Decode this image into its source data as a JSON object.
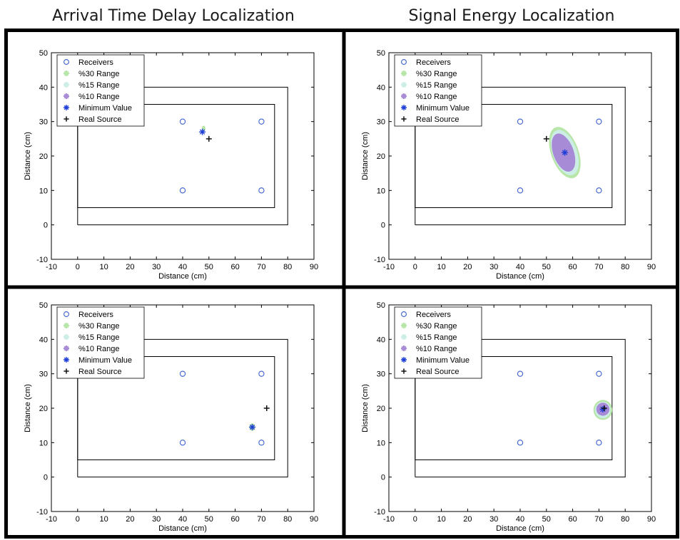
{
  "page": {
    "column_titles": [
      "Arrival Time Delay Localization",
      "Signal Energy Localization"
    ]
  },
  "colors": {
    "receiver": "#3a5fcd",
    "range30": "#b8e6a8",
    "range15": "#cdeee6",
    "range10": "#a78bd6",
    "minimum": "#1f3fd6",
    "real_source": "#111111",
    "frame": "#000000"
  },
  "chart_data": [
    {
      "type": "scatter",
      "column": "Arrival Time Delay Localization",
      "xlabel": "Distance (cm)",
      "ylabel": "Distance (cm)",
      "xlim": [
        -10,
        90
      ],
      "ylim": [
        -10,
        50
      ],
      "xticks": [
        -10,
        0,
        10,
        20,
        30,
        40,
        50,
        60,
        70,
        80,
        90
      ],
      "yticks": [
        -10,
        0,
        10,
        20,
        30,
        40,
        50
      ],
      "grid": false,
      "legend": {
        "placement": "top-left",
        "entries": [
          "Receivers",
          "%30 Range",
          "%15 Range",
          "%10 Range",
          "Minimum Value",
          "Real Source"
        ]
      },
      "outer_rect": [
        [
          0,
          0
        ],
        [
          80,
          0
        ],
        [
          80,
          40
        ],
        [
          0,
          40
        ],
        [
          0,
          0
        ]
      ],
      "inner_rect": [
        [
          0,
          5
        ],
        [
          75,
          5
        ],
        [
          75,
          35
        ],
        [
          0,
          35
        ],
        [
          0,
          5
        ]
      ],
      "receivers": [
        [
          40,
          30
        ],
        [
          70,
          30
        ],
        [
          40,
          10
        ],
        [
          70,
          10
        ]
      ],
      "ranges": {
        "r30": {
          "cx": 48,
          "cy": 28,
          "rx": 0.7,
          "ry": 0.8,
          "angle": 0
        },
        "r15": null,
        "r10": null
      },
      "minimum_value": [
        47.5,
        27
      ],
      "real_source": [
        50,
        25
      ]
    },
    {
      "type": "scatter",
      "column": "Signal Energy Localization",
      "xlabel": "Distance (cm)",
      "ylabel": "Distance (cm)",
      "xlim": [
        -10,
        90
      ],
      "ylim": [
        -10,
        50
      ],
      "xticks": [
        -10,
        0,
        10,
        20,
        30,
        40,
        50,
        60,
        70,
        80,
        90
      ],
      "yticks": [
        -10,
        0,
        10,
        20,
        30,
        40,
        50
      ],
      "grid": false,
      "legend": {
        "placement": "top-left",
        "entries": [
          "Receivers",
          "%30 Range",
          "%15 Range",
          "%10 Range",
          "Minimum Value",
          "Real Source"
        ]
      },
      "outer_rect": [
        [
          0,
          0
        ],
        [
          80,
          0
        ],
        [
          80,
          40
        ],
        [
          0,
          40
        ],
        [
          0,
          0
        ]
      ],
      "inner_rect": [
        [
          0,
          5
        ],
        [
          75,
          5
        ],
        [
          75,
          35
        ],
        [
          0,
          35
        ],
        [
          0,
          5
        ]
      ],
      "receivers": [
        [
          40,
          30
        ],
        [
          70,
          30
        ],
        [
          40,
          10
        ],
        [
          70,
          10
        ]
      ],
      "ranges": {
        "r30": {
          "cx": 57,
          "cy": 21,
          "rx": 5.2,
          "ry": 7.8,
          "angle": -20
        },
        "r15": {
          "cx": 57,
          "cy": 21,
          "rx": 4.6,
          "ry": 6.9,
          "angle": -20
        },
        "r10": {
          "cx": 56.5,
          "cy": 21,
          "rx": 3.9,
          "ry": 5.8,
          "angle": -20
        }
      },
      "minimum_value": [
        57,
        21
      ],
      "real_source": [
        50,
        25
      ]
    },
    {
      "type": "scatter",
      "column": "Arrival Time Delay Localization",
      "xlabel": "Distance (cm)",
      "ylabel": "Distance (cm)",
      "xlim": [
        -10,
        90
      ],
      "ylim": [
        -10,
        50
      ],
      "xticks": [
        -10,
        0,
        10,
        20,
        30,
        40,
        50,
        60,
        70,
        80,
        90
      ],
      "yticks": [
        -10,
        0,
        10,
        20,
        30,
        40,
        50
      ],
      "grid": false,
      "legend": {
        "placement": "top-left",
        "entries": [
          "Receivers",
          "%30 Range",
          "%15 Range",
          "%10 Range",
          "Minimum Value",
          "Real Source"
        ]
      },
      "outer_rect": [
        [
          0,
          0
        ],
        [
          80,
          0
        ],
        [
          80,
          40
        ],
        [
          0,
          40
        ],
        [
          0,
          0
        ]
      ],
      "inner_rect": [
        [
          0,
          5
        ],
        [
          75,
          5
        ],
        [
          75,
          35
        ],
        [
          0,
          35
        ],
        [
          0,
          5
        ]
      ],
      "receivers": [
        [
          40,
          30
        ],
        [
          70,
          30
        ],
        [
          40,
          10
        ],
        [
          70,
          10
        ]
      ],
      "ranges": {
        "r30": {
          "cx": 66.5,
          "cy": 14.5,
          "rx": 1.1,
          "ry": 1.1,
          "angle": 0
        },
        "r15": null,
        "r10": null
      },
      "minimum_value": [
        66.5,
        14.5
      ],
      "real_source": [
        72,
        20
      ]
    },
    {
      "type": "scatter",
      "column": "Signal Energy Localization",
      "xlabel": "Distance (cm)",
      "ylabel": "Distance (cm)",
      "xlim": [
        -10,
        90
      ],
      "ylim": [
        -10,
        50
      ],
      "xticks": [
        -10,
        0,
        10,
        20,
        30,
        40,
        50,
        60,
        70,
        80,
        90
      ],
      "yticks": [
        -10,
        0,
        10,
        20,
        30,
        40,
        50
      ],
      "grid": false,
      "legend": {
        "placement": "top-left",
        "entries": [
          "Receivers",
          "%30 Range",
          "%15 Range",
          "%10 Range",
          "Minimum Value",
          "Real Source"
        ]
      },
      "outer_rect": [
        [
          0,
          0
        ],
        [
          80,
          0
        ],
        [
          80,
          40
        ],
        [
          0,
          40
        ],
        [
          0,
          0
        ]
      ],
      "inner_rect": [
        [
          0,
          5
        ],
        [
          75,
          5
        ],
        [
          75,
          35
        ],
        [
          0,
          35
        ],
        [
          0,
          5
        ]
      ],
      "receivers": [
        [
          40,
          30
        ],
        [
          70,
          30
        ],
        [
          40,
          10
        ],
        [
          70,
          10
        ]
      ],
      "ranges": {
        "r30": {
          "cx": 71.5,
          "cy": 19.5,
          "rx": 3.6,
          "ry": 2.9,
          "angle": 0
        },
        "r15": {
          "cx": 71.5,
          "cy": 19.5,
          "rx": 3.0,
          "ry": 2.4,
          "angle": 0
        },
        "r10": {
          "cx": 71.5,
          "cy": 19.7,
          "rx": 2.5,
          "ry": 1.9,
          "angle": 0
        }
      },
      "minimum_value": [
        71.5,
        19.7
      ],
      "real_source": [
        72,
        20
      ]
    }
  ]
}
